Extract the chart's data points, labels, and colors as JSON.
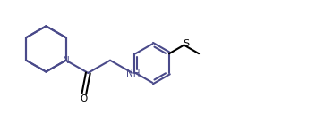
{
  "bg_color": "#ffffff",
  "line_color": "#4a4a8a",
  "label_color_N": "#4a4a8a",
  "label_color_S": "#000000",
  "label_color_O": "#000000",
  "label_color_NH": "#4a4a8a",
  "line_width": 1.5,
  "fig_width": 3.53,
  "fig_height": 1.37,
  "dpi": 100,
  "xlim": [
    0,
    11.5
  ],
  "ylim": [
    0,
    4.5
  ]
}
